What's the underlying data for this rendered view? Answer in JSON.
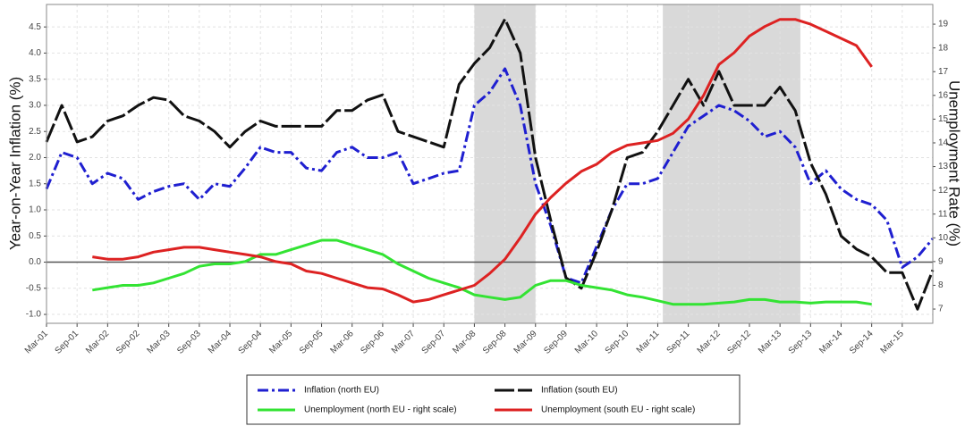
{
  "chart_data": {
    "type": "line",
    "ylabel": "Year-on-Year Inflation (%)",
    "y2label": "Unemployment Rate (%)",
    "x": [
      "2001-03",
      "2001-06",
      "2001-09",
      "2001-12",
      "2002-03",
      "2002-06",
      "2002-09",
      "2002-12",
      "2003-03",
      "2003-06",
      "2003-09",
      "2003-12",
      "2004-03",
      "2004-06",
      "2004-09",
      "2004-12",
      "2005-03",
      "2005-06",
      "2005-09",
      "2005-12",
      "2006-03",
      "2006-06",
      "2006-09",
      "2006-12",
      "2007-03",
      "2007-06",
      "2007-09",
      "2007-12",
      "2008-03",
      "2008-06",
      "2008-09",
      "2008-12",
      "2009-03",
      "2009-06",
      "2009-09",
      "2009-12",
      "2010-03",
      "2010-06",
      "2010-09",
      "2010-12",
      "2011-03",
      "2011-06",
      "2011-09",
      "2011-12",
      "2012-03",
      "2012-06",
      "2012-09",
      "2012-12",
      "2013-03",
      "2013-06",
      "2013-09",
      "2013-12",
      "2014-03",
      "2014-06",
      "2014-09",
      "2014-12",
      "2015-03",
      "2015-06",
      "2015-09"
    ],
    "series": [
      {
        "name": "Inflation (north EU)",
        "color": "#1f1fd0",
        "dash": "12 4 3 4",
        "axis": "y",
        "values": [
          1.4,
          2.1,
          2.0,
          1.5,
          1.7,
          1.6,
          1.2,
          1.35,
          1.45,
          1.5,
          1.2,
          1.5,
          1.45,
          1.8,
          2.2,
          2.1,
          2.1,
          1.8,
          1.75,
          2.1,
          2.2,
          2.0,
          2.0,
          2.1,
          1.5,
          1.6,
          1.7,
          1.75,
          3.0,
          3.25,
          3.7,
          3.0,
          1.5,
          0.7,
          -0.3,
          -0.4,
          0.3,
          1.0,
          1.5,
          1.5,
          1.6,
          2.1,
          2.6,
          2.8,
          3.0,
          2.9,
          2.7,
          2.4,
          2.5,
          2.2,
          1.5,
          1.75,
          1.4,
          1.2,
          1.1,
          0.8,
          -0.1,
          0.1,
          0.45
        ]
      },
      {
        "name": "Inflation (south EU)",
        "color": "#111111",
        "dash": "22 4",
        "axis": "y",
        "values": [
          2.3,
          3.0,
          2.3,
          2.4,
          2.7,
          2.8,
          3.0,
          3.15,
          3.1,
          2.8,
          2.7,
          2.5,
          2.2,
          2.5,
          2.7,
          2.6,
          2.6,
          2.6,
          2.6,
          2.9,
          2.9,
          3.1,
          3.2,
          2.5,
          2.4,
          2.3,
          2.2,
          3.4,
          3.8,
          4.1,
          4.65,
          4.0,
          2.0,
          0.8,
          -0.3,
          -0.5,
          0.2,
          1.0,
          2.0,
          2.1,
          2.5,
          3.0,
          3.5,
          3.0,
          3.65,
          3.0,
          3.0,
          3.0,
          3.35,
          2.9,
          1.9,
          1.3,
          0.5,
          0.25,
          0.1,
          -0.2,
          -0.2,
          -0.9,
          -0.15
        ]
      },
      {
        "name": "Unemployment (north EU - right scale)",
        "color": "#33e333",
        "dash": "none",
        "axis": "y2",
        "values": [
          null,
          null,
          null,
          7.8,
          7.9,
          8.0,
          8.0,
          8.1,
          8.3,
          8.5,
          8.8,
          8.9,
          8.9,
          9.0,
          9.3,
          9.3,
          9.5,
          9.7,
          9.9,
          9.9,
          9.7,
          9.5,
          9.3,
          8.9,
          8.6,
          8.3,
          8.1,
          7.9,
          7.6,
          7.5,
          7.4,
          7.5,
          8.0,
          8.2,
          8.2,
          8.0,
          7.9,
          7.8,
          7.6,
          7.5,
          7.35,
          7.2,
          7.2,
          7.2,
          7.25,
          7.3,
          7.4,
          7.4,
          7.3,
          7.3,
          7.25,
          7.3,
          7.3,
          7.3,
          7.2,
          null,
          null,
          null,
          null
        ]
      },
      {
        "name": "Unemployment (south EU - right scale)",
        "color": "#dd2222",
        "dash": "none",
        "axis": "y2",
        "values": [
          null,
          null,
          null,
          9.2,
          9.1,
          9.1,
          9.2,
          9.4,
          9.5,
          9.6,
          9.6,
          9.5,
          9.4,
          9.3,
          9.2,
          9.0,
          8.9,
          8.6,
          8.5,
          8.3,
          8.1,
          7.9,
          7.85,
          7.6,
          7.3,
          7.4,
          7.6,
          7.8,
          8.0,
          8.5,
          9.1,
          10.0,
          11.0,
          11.7,
          12.3,
          12.8,
          13.1,
          13.6,
          13.9,
          14.0,
          14.1,
          14.4,
          15.0,
          16.0,
          17.3,
          17.8,
          18.5,
          18.9,
          19.2,
          19.2,
          19.0,
          18.7,
          18.4,
          18.1,
          17.2,
          null,
          null,
          null,
          null
        ]
      }
    ],
    "xlim": [
      "2001-03",
      "2015-09"
    ],
    "xticks": [
      {
        "value": "2001-03",
        "label": "Mar-01"
      },
      {
        "value": "2001-09",
        "label": "Sep-01"
      },
      {
        "value": "2002-03",
        "label": "Mar-02"
      },
      {
        "value": "2002-09",
        "label": "Sep-02"
      },
      {
        "value": "2003-03",
        "label": "Mar-03"
      },
      {
        "value": "2003-09",
        "label": "Sep-03"
      },
      {
        "value": "2004-03",
        "label": "Mar-04"
      },
      {
        "value": "2004-09",
        "label": "Sep-04"
      },
      {
        "value": "2005-03",
        "label": "Mar-05"
      },
      {
        "value": "2005-09",
        "label": "Sep-05"
      },
      {
        "value": "2006-03",
        "label": "Mar-06"
      },
      {
        "value": "2006-09",
        "label": "Sep-06"
      },
      {
        "value": "2007-03",
        "label": "Mar-07"
      },
      {
        "value": "2007-09",
        "label": "Sep-07"
      },
      {
        "value": "2008-03",
        "label": "Mar-08"
      },
      {
        "value": "2008-09",
        "label": "Sep-08"
      },
      {
        "value": "2009-03",
        "label": "Mar-09"
      },
      {
        "value": "2009-09",
        "label": "Sep-09"
      },
      {
        "value": "2010-03",
        "label": "Mar-10"
      },
      {
        "value": "2010-09",
        "label": "Sep-10"
      },
      {
        "value": "2011-03",
        "label": "Mar-11"
      },
      {
        "value": "2011-09",
        "label": "Sep-11"
      },
      {
        "value": "2012-03",
        "label": "Mar-12"
      },
      {
        "value": "2012-09",
        "label": "Sep-12"
      },
      {
        "value": "2013-03",
        "label": "Mar-13"
      },
      {
        "value": "2013-09",
        "label": "Sep-13"
      },
      {
        "value": "2014-03",
        "label": "Mar-14"
      },
      {
        "value": "2014-09",
        "label": "Sep-14"
      },
      {
        "value": "2015-03",
        "label": "Mar-15"
      }
    ],
    "ylim": [
      -1.17,
      4.93
    ],
    "yticks": [
      {
        "value": -1,
        "label": "-1.0"
      },
      -0.5,
      {
        "value": 0,
        "label": "0.0"
      },
      0.5,
      {
        "value": 1,
        "label": "1.0"
      },
      1.5,
      {
        "value": 2,
        "label": "2.0"
      },
      2.5,
      {
        "value": 3,
        "label": "3.0"
      },
      3.5,
      {
        "value": 4,
        "label": "4.0"
      },
      4.5
    ],
    "y2lim": [
      6.4,
      19.83
    ],
    "y2ticks": [
      7,
      8,
      9,
      10,
      11,
      12,
      13,
      14,
      15,
      16,
      17,
      18,
      19
    ],
    "shaded_periods": [
      [
        "2008-03",
        "2009-03"
      ],
      [
        "2011-04",
        "2013-07"
      ]
    ],
    "shade_color": "#d9d9d9",
    "zero_line": true,
    "grid": true,
    "legend": "bottom"
  }
}
